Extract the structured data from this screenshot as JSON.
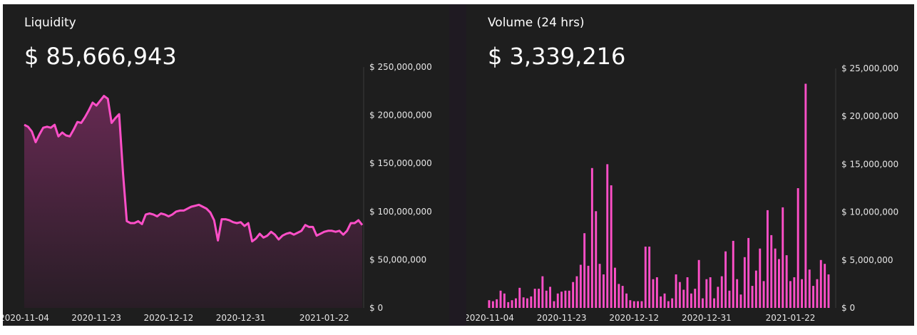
{
  "colors": {
    "accent": "#ff4fc8",
    "background": "#1e1e1e",
    "text": "#ffffff"
  },
  "chart_data": [
    {
      "type": "area",
      "title": "Liquidity",
      "headline_value": "$ 85,666,943",
      "ylim": [
        0,
        250000000
      ],
      "y_tick_labels": [
        "$ 250,000,000",
        "$ 200,000,000",
        "$ 150,000,000",
        "$ 100,000,000",
        "$ 50,000,000",
        "$ 0"
      ],
      "y_tick_values": [
        250000000,
        200000000,
        150000000,
        100000000,
        50000000,
        0
      ],
      "x_tick_labels": [
        "2020-11-04",
        "2020-11-23",
        "2020-12-12",
        "2020-12-31",
        "2021-01-22"
      ],
      "x_start": "2020-11-04",
      "x_end": "2021-02-01",
      "grid": false,
      "x": [
        "2020-11-04",
        "2020-11-05",
        "2020-11-06",
        "2020-11-07",
        "2020-11-08",
        "2020-11-09",
        "2020-11-10",
        "2020-11-11",
        "2020-11-12",
        "2020-11-13",
        "2020-11-14",
        "2020-11-15",
        "2020-11-16",
        "2020-11-17",
        "2020-11-18",
        "2020-11-19",
        "2020-11-20",
        "2020-11-21",
        "2020-11-22",
        "2020-11-23",
        "2020-11-24",
        "2020-11-25",
        "2020-11-26",
        "2020-11-27",
        "2020-11-28",
        "2020-11-29",
        "2020-11-30",
        "2020-12-01",
        "2020-12-02",
        "2020-12-03",
        "2020-12-04",
        "2020-12-05",
        "2020-12-06",
        "2020-12-07",
        "2020-12-08",
        "2020-12-09",
        "2020-12-10",
        "2020-12-11",
        "2020-12-12",
        "2020-12-13",
        "2020-12-14",
        "2020-12-15",
        "2020-12-16",
        "2020-12-17",
        "2020-12-18",
        "2020-12-19",
        "2020-12-20",
        "2020-12-21",
        "2020-12-22",
        "2020-12-23",
        "2020-12-24",
        "2020-12-25",
        "2020-12-26",
        "2020-12-27",
        "2020-12-28",
        "2020-12-29",
        "2020-12-30",
        "2020-12-31",
        "2021-01-01",
        "2021-01-02",
        "2021-01-03",
        "2021-01-04",
        "2021-01-05",
        "2021-01-06",
        "2021-01-07",
        "2021-01-08",
        "2021-01-09",
        "2021-01-10",
        "2021-01-11",
        "2021-01-12",
        "2021-01-13",
        "2021-01-14",
        "2021-01-15",
        "2021-01-16",
        "2021-01-17",
        "2021-01-18",
        "2021-01-19",
        "2021-01-20",
        "2021-01-21",
        "2021-01-22",
        "2021-01-23",
        "2021-01-24",
        "2021-01-25",
        "2021-01-26",
        "2021-01-27",
        "2021-01-28",
        "2021-01-29",
        "2021-01-30",
        "2021-01-31",
        "2021-02-01"
      ],
      "values": [
        190000000,
        188000000,
        183000000,
        172000000,
        180000000,
        187000000,
        188000000,
        187000000,
        190000000,
        178000000,
        182000000,
        179000000,
        178000000,
        185000000,
        193000000,
        192000000,
        198000000,
        205000000,
        213000000,
        210000000,
        215000000,
        220000000,
        217000000,
        192000000,
        197000000,
        201000000,
        140000000,
        90000000,
        88000000,
        88000000,
        90000000,
        87000000,
        97000000,
        98000000,
        97000000,
        95000000,
        98000000,
        97000000,
        95000000,
        97000000,
        100000000,
        101000000,
        101000000,
        103000000,
        105000000,
        106000000,
        107000000,
        105000000,
        103000000,
        99000000,
        91000000,
        70000000,
        92000000,
        92000000,
        91000000,
        89000000,
        88000000,
        89000000,
        85000000,
        88000000,
        69000000,
        72000000,
        77000000,
        73000000,
        75000000,
        79000000,
        76000000,
        71000000,
        75000000,
        77000000,
        78000000,
        76000000,
        78000000,
        80000000,
        86000000,
        84000000,
        84000000,
        75000000,
        77000000,
        79000000,
        80000000,
        80000000,
        79000000,
        80000000,
        76000000,
        80000000,
        88000000,
        88000000,
        91000000,
        86000000
      ]
    },
    {
      "type": "bar",
      "title": "Volume (24 hrs)",
      "headline_value": "$ 3,339,216",
      "ylim": [
        0,
        25000000
      ],
      "y_tick_labels": [
        "$ 25,000,000",
        "$ 20,000,000",
        "$ 15,000,000",
        "$ 10,000,000",
        "$ 5,000,000",
        "$ 0"
      ],
      "y_tick_values": [
        25000000,
        20000000,
        15000000,
        10000000,
        5000000,
        0
      ],
      "x_tick_labels": [
        "2020-11-04",
        "2020-11-23",
        "2020-12-12",
        "2020-12-31",
        "2021-01-22"
      ],
      "x_start": "2020-11-04",
      "x_end": "2021-02-01",
      "grid": false,
      "x": [
        "2020-11-04",
        "2020-11-05",
        "2020-11-06",
        "2020-11-07",
        "2020-11-08",
        "2020-11-09",
        "2020-11-10",
        "2020-11-11",
        "2020-11-12",
        "2020-11-13",
        "2020-11-14",
        "2020-11-15",
        "2020-11-16",
        "2020-11-17",
        "2020-11-18",
        "2020-11-19",
        "2020-11-20",
        "2020-11-21",
        "2020-11-22",
        "2020-11-23",
        "2020-11-24",
        "2020-11-25",
        "2020-11-26",
        "2020-11-27",
        "2020-11-28",
        "2020-11-29",
        "2020-11-30",
        "2020-12-01",
        "2020-12-02",
        "2020-12-03",
        "2020-12-04",
        "2020-12-05",
        "2020-12-06",
        "2020-12-07",
        "2020-12-08",
        "2020-12-09",
        "2020-12-10",
        "2020-12-11",
        "2020-12-12",
        "2020-12-13",
        "2020-12-14",
        "2020-12-15",
        "2020-12-16",
        "2020-12-17",
        "2020-12-18",
        "2020-12-19",
        "2020-12-20",
        "2020-12-21",
        "2020-12-22",
        "2020-12-23",
        "2020-12-24",
        "2020-12-25",
        "2020-12-26",
        "2020-12-27",
        "2020-12-28",
        "2020-12-29",
        "2020-12-30",
        "2020-12-31",
        "2021-01-01",
        "2021-01-02",
        "2021-01-03",
        "2021-01-04",
        "2021-01-05",
        "2021-01-06",
        "2021-01-07",
        "2021-01-08",
        "2021-01-09",
        "2021-01-10",
        "2021-01-11",
        "2021-01-12",
        "2021-01-13",
        "2021-01-14",
        "2021-01-15",
        "2021-01-16",
        "2021-01-17",
        "2021-01-18",
        "2021-01-19",
        "2021-01-20",
        "2021-01-21",
        "2021-01-22",
        "2021-01-23",
        "2021-01-24",
        "2021-01-25",
        "2021-01-26",
        "2021-01-27",
        "2021-01-28",
        "2021-01-29",
        "2021-01-30",
        "2021-01-31",
        "2021-02-01"
      ],
      "values": [
        800000,
        700000,
        900000,
        1800000,
        1500000,
        600000,
        800000,
        1000000,
        2100000,
        1100000,
        1000000,
        1200000,
        2000000,
        2000000,
        3300000,
        1800000,
        2200000,
        700000,
        1500000,
        1700000,
        1800000,
        1800000,
        2700000,
        3300000,
        4500000,
        7800000,
        4400000,
        14600000,
        10100000,
        4600000,
        3500000,
        15000000,
        12800000,
        4200000,
        2500000,
        2300000,
        1500000,
        800000,
        700000,
        700000,
        700000,
        6400000,
        6400000,
        3000000,
        3200000,
        1200000,
        1500000,
        700000,
        1000000,
        3500000,
        2700000,
        1900000,
        3200000,
        1500000,
        2000000,
        5000000,
        1000000,
        3000000,
        3200000,
        1000000,
        2200000,
        3300000,
        5900000,
        1800000,
        7000000,
        3000000,
        1400000,
        5300000,
        7300000,
        2300000,
        3900000,
        6200000,
        2800000,
        10200000,
        7600000,
        6200000,
        5100000,
        10500000,
        5500000,
        2800000,
        3200000,
        12500000,
        3000000,
        23400000,
        4000000,
        2300000,
        3000000,
        5000000,
        4600000,
        3500000
      ]
    }
  ]
}
